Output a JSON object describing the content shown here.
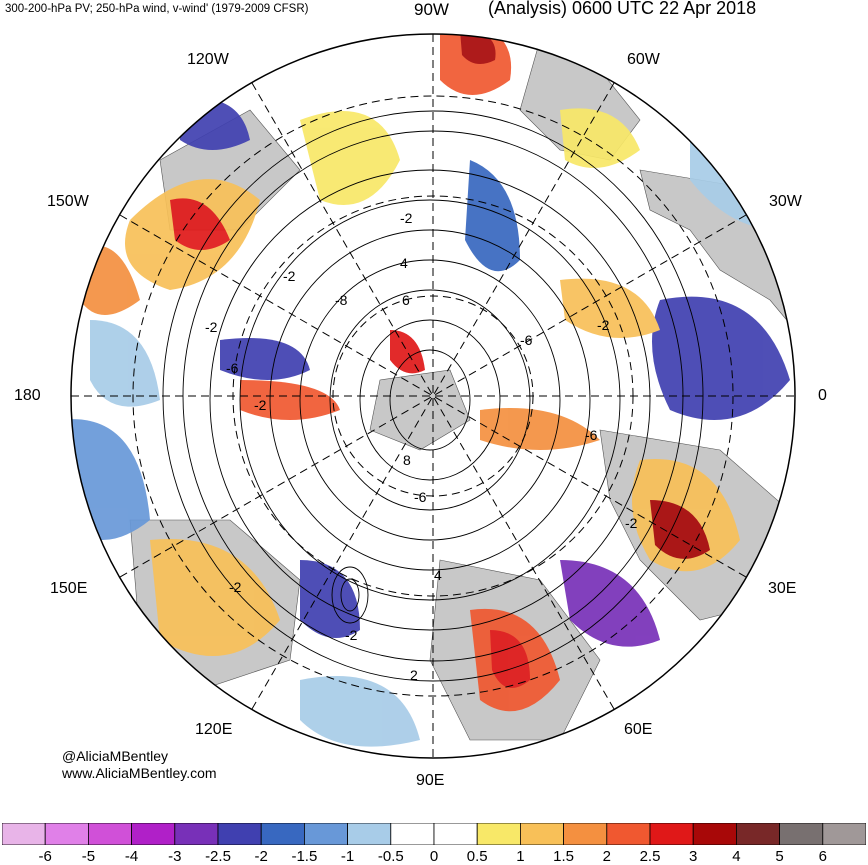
{
  "header": {
    "left_title": "300-200-hPa PV; 250-hPa wind, v-wind' (1979-2009 CFSR)",
    "right_title": "(Analysis) 0600 UTC 22 Apr 2018"
  },
  "longitude_labels": {
    "top": "90W",
    "upper_left": "120W",
    "left_upper": "150W",
    "left": "180",
    "left_lower": "150E",
    "lower_left": "120E",
    "bottom": "90E",
    "lower_right": "60E",
    "right_lower": "30E",
    "right": "0",
    "right_upper": "30W",
    "upper_right": "60W"
  },
  "contour_labels": [
    "-2",
    "4",
    "-2",
    "-6",
    "-8",
    "6",
    "-2",
    "-6",
    "8",
    "-6",
    "-2",
    "-2",
    "4",
    "-2",
    "-2",
    "-2",
    "-6",
    "2"
  ],
  "credits": {
    "handle": "@AliciaMBentley",
    "website": "www.AliciaMBentley.com"
  },
  "colorbar": {
    "labels": [
      "-6",
      "-5",
      "-4",
      "-3",
      "-2.5",
      "-2",
      "-1.5",
      "-1",
      "-0.5",
      "0",
      "0.5",
      "1",
      "1.5",
      "2",
      "2.5",
      "3",
      "4",
      "5",
      "6"
    ],
    "colors": [
      "#e8b4e8",
      "#e080e8",
      "#d050d8",
      "#b020c8",
      "#7830b8",
      "#4040b0",
      "#3868c0",
      "#6898d8",
      "#a8cce8",
      "#ffffff",
      "#ffffff",
      "#f8e868",
      "#f8c058",
      "#f49040",
      "#f05830",
      "#e01818",
      "#a80808",
      "#782828",
      "#787070",
      "#a09898"
    ]
  },
  "colors": {
    "land": "#c8c8c8",
    "ocean_bg": "#ffffff"
  }
}
